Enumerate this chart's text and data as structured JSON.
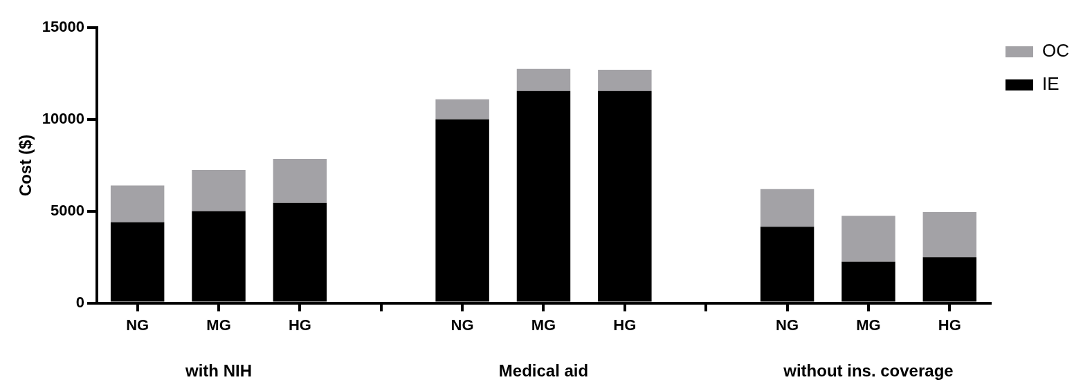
{
  "chart_data": {
    "type": "bar",
    "stacked": true,
    "ylabel": "Cost ($)",
    "categories": [
      "NG",
      "MG",
      "HG",
      null,
      "NG",
      "MG",
      "HG",
      null,
      "NG",
      "MG",
      "HG"
    ],
    "series": [
      {
        "name": "IE",
        "color": "#000000",
        "values": [
          4400,
          5000,
          5450,
          null,
          10000,
          11550,
          11550,
          null,
          4150,
          2250,
          2500
        ]
      },
      {
        "name": "OC",
        "color": "#a3a2a6",
        "values": [
          2000,
          2250,
          2400,
          null,
          1100,
          1200,
          1150,
          null,
          2050,
          2500,
          2450
        ]
      }
    ],
    "ylim": [
      0,
      15000
    ],
    "yticks": [
      0,
      5000,
      10000,
      15000
    ],
    "grid": false,
    "legend": "top right",
    "annotations": [
      "with NIH",
      "Medical aid",
      "without ins. coverage"
    ]
  }
}
